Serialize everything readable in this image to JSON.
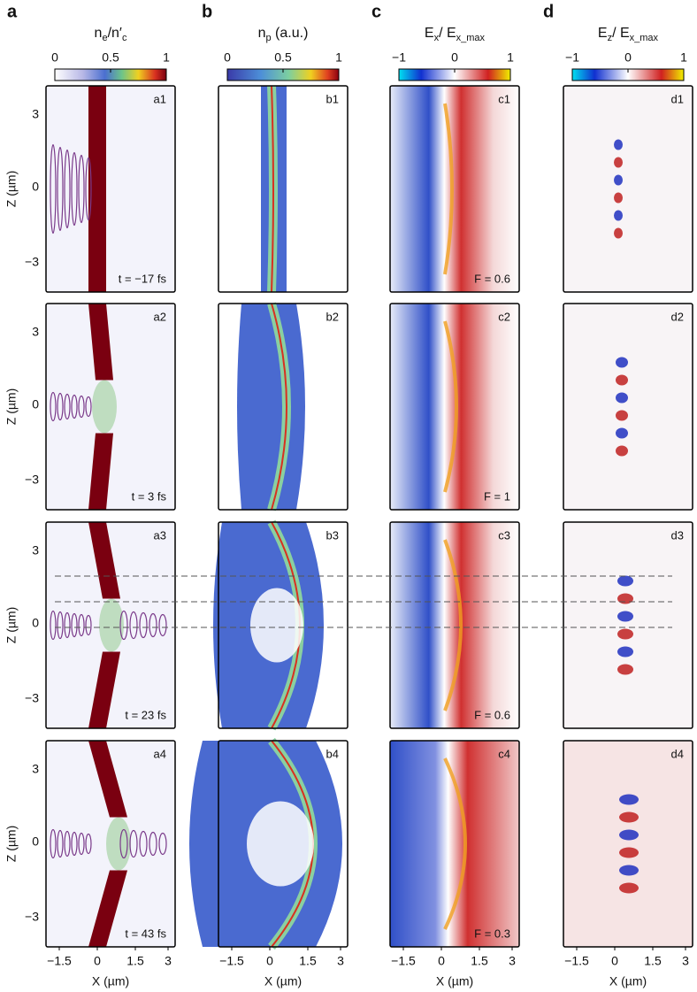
{
  "columns": [
    {
      "letter": "a",
      "title": [
        {
          "text": "n",
          "sub": false
        },
        {
          "text": "e",
          "sub": true
        },
        {
          "text": "/",
          "sub": false
        },
        {
          "text": "n′",
          "sub": false
        },
        {
          "text": "c",
          "sub": true
        }
      ],
      "colorbar_ticks": [
        "0",
        "0.5",
        "1"
      ],
      "panels": [
        {
          "label": "a1",
          "note": "t = −17 fs"
        },
        {
          "label": "a2",
          "note": "t = 3 fs"
        },
        {
          "label": "a3",
          "note": "t = 23 fs"
        },
        {
          "label": "a4",
          "note": "t = 43 fs"
        }
      ]
    },
    {
      "letter": "b",
      "title": [
        {
          "text": "n",
          "sub": false
        },
        {
          "text": "p",
          "sub": true
        },
        {
          "text": " (a.u.)",
          "sub": false
        }
      ],
      "colorbar_ticks": [
        "0",
        "0.5",
        "1"
      ],
      "panels": [
        {
          "label": "b1"
        },
        {
          "label": "b2"
        },
        {
          "label": "b3"
        },
        {
          "label": "b4"
        }
      ]
    },
    {
      "letter": "c",
      "title": [
        {
          "text": "E",
          "sub": false
        },
        {
          "text": "x",
          "sub": true
        },
        {
          "text": "/ ",
          "sub": false
        },
        {
          "text": "E",
          "sub": false
        },
        {
          "text": "x_max",
          "sub": true
        }
      ],
      "colorbar_ticks": [
        "−1",
        "0",
        "1"
      ],
      "panels": [
        {
          "label": "c1",
          "note": "F = 0.6"
        },
        {
          "label": "c2",
          "note": "F = 1"
        },
        {
          "label": "c3",
          "note": "F = 0.6"
        },
        {
          "label": "c4",
          "note": "F = 0.3"
        }
      ]
    },
    {
      "letter": "d",
      "title": [
        {
          "text": "E",
          "sub": false
        },
        {
          "text": "z",
          "sub": true
        },
        {
          "text": "/ ",
          "sub": false
        },
        {
          "text": "E",
          "sub": false
        },
        {
          "text": "x_max",
          "sub": true
        }
      ],
      "colorbar_ticks": [
        "−1",
        "0",
        "1"
      ],
      "panels": [
        {
          "label": "d1"
        },
        {
          "label": "d2"
        },
        {
          "label": "d3"
        },
        {
          "label": "d4"
        }
      ]
    }
  ],
  "z_axis": {
    "label": "Z (µm)",
    "ticks": [
      "3",
      "0",
      "−3"
    ]
  },
  "x_axis": {
    "label": "X (µm)",
    "ticks": [
      "−1.5",
      "0",
      "1.5",
      "3"
    ]
  }
}
